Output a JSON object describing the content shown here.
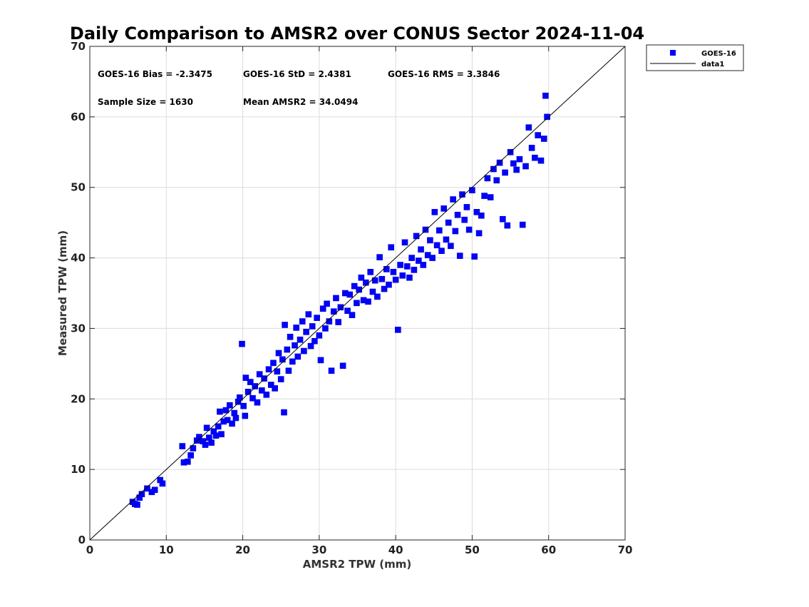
{
  "chart_data": {
    "type": "scatter",
    "title": "Daily Comparison to AMSR2 over CONUS Sector 2024-11-04",
    "xlabel": "AMSR2 TPW (mm)",
    "ylabel": "Measured TPW (mm)",
    "xlim": [
      0,
      70
    ],
    "ylim": [
      0,
      70
    ],
    "xticks": [
      "0",
      "10",
      "20",
      "30",
      "40",
      "50",
      "60",
      "70"
    ],
    "yticks": [
      "0",
      "10",
      "20",
      "30",
      "40",
      "50",
      "60",
      "70"
    ],
    "grid": true,
    "legend_position": "outside-top-right",
    "colors": {
      "marker": "#0000ff",
      "line": "#000000",
      "grid": "#dcdcdc"
    },
    "stats": {
      "bias": "GOES-16 Bias = -2.3475",
      "std": "GOES-16 StD = 2.4381",
      "rms": "GOES-16 RMS = 3.3846",
      "sample_size": "Sample Size = 1630",
      "mean": "Mean AMSR2 = 34.0494"
    },
    "series": [
      {
        "name": "GOES-16",
        "marker": "square",
        "points": [
          [
            5.6,
            5.4
          ],
          [
            5.9,
            5.1
          ],
          [
            6.2,
            5.0
          ],
          [
            6.5,
            6.0
          ],
          [
            6.8,
            6.5
          ],
          [
            7.5,
            7.3
          ],
          [
            8.1,
            6.8
          ],
          [
            8.5,
            7.1
          ],
          [
            9.2,
            8.5
          ],
          [
            9.5,
            8.0
          ],
          [
            12.1,
            13.3
          ],
          [
            12.3,
            11.0
          ],
          [
            12.8,
            11.1
          ],
          [
            13.2,
            12.0
          ],
          [
            13.5,
            13.0
          ],
          [
            14.0,
            14.1
          ],
          [
            14.3,
            14.6
          ],
          [
            14.8,
            14.0
          ],
          [
            15.1,
            13.5
          ],
          [
            15.3,
            15.9
          ],
          [
            15.6,
            14.5
          ],
          [
            15.9,
            13.8
          ],
          [
            16.2,
            15.4
          ],
          [
            16.5,
            14.8
          ],
          [
            16.8,
            16.1
          ],
          [
            17.0,
            18.2
          ],
          [
            17.2,
            15.0
          ],
          [
            17.5,
            16.8
          ],
          [
            17.8,
            18.4
          ],
          [
            18.0,
            17.0
          ],
          [
            18.3,
            19.1
          ],
          [
            18.6,
            16.5
          ],
          [
            18.9,
            18.0
          ],
          [
            19.1,
            17.3
          ],
          [
            19.4,
            19.6
          ],
          [
            19.6,
            20.2
          ],
          [
            19.9,
            27.8
          ],
          [
            20.1,
            19.0
          ],
          [
            20.3,
            17.6
          ],
          [
            20.4,
            23.0
          ],
          [
            20.7,
            21.0
          ],
          [
            21.0,
            22.4
          ],
          [
            21.3,
            20.1
          ],
          [
            21.6,
            21.8
          ],
          [
            21.9,
            19.5
          ],
          [
            22.2,
            23.5
          ],
          [
            22.5,
            21.2
          ],
          [
            22.8,
            22.9
          ],
          [
            23.1,
            20.6
          ],
          [
            23.4,
            24.2
          ],
          [
            23.7,
            22.0
          ],
          [
            24.0,
            25.1
          ],
          [
            24.2,
            21.5
          ],
          [
            24.5,
            23.9
          ],
          [
            24.7,
            26.5
          ],
          [
            25.0,
            22.8
          ],
          [
            25.2,
            25.6
          ],
          [
            25.4,
            18.1
          ],
          [
            25.5,
            30.5
          ],
          [
            25.8,
            27.0
          ],
          [
            26.0,
            24.0
          ],
          [
            26.2,
            28.8
          ],
          [
            26.5,
            25.3
          ],
          [
            26.8,
            27.6
          ],
          [
            27.0,
            30.1
          ],
          [
            27.2,
            26.0
          ],
          [
            27.5,
            28.4
          ],
          [
            27.8,
            31.0
          ],
          [
            28.0,
            26.8
          ],
          [
            28.3,
            29.5
          ],
          [
            28.6,
            32.0
          ],
          [
            28.9,
            27.5
          ],
          [
            29.1,
            30.3
          ],
          [
            29.4,
            28.2
          ],
          [
            29.7,
            31.5
          ],
          [
            30.0,
            29.0
          ],
          [
            30.2,
            25.5
          ],
          [
            30.5,
            32.8
          ],
          [
            30.8,
            30.0
          ],
          [
            31.0,
            33.5
          ],
          [
            31.3,
            31.0
          ],
          [
            31.6,
            24.0
          ],
          [
            31.9,
            32.4
          ],
          [
            32.2,
            34.3
          ],
          [
            32.5,
            30.9
          ],
          [
            32.8,
            33.0
          ],
          [
            33.1,
            24.7
          ],
          [
            33.4,
            35.0
          ],
          [
            33.7,
            32.5
          ],
          [
            34.0,
            34.8
          ],
          [
            34.3,
            31.9
          ],
          [
            34.6,
            36.0
          ],
          [
            34.9,
            33.6
          ],
          [
            35.2,
            35.5
          ],
          [
            35.5,
            37.2
          ],
          [
            35.8,
            34.0
          ],
          [
            36.1,
            36.5
          ],
          [
            36.4,
            33.8
          ],
          [
            36.7,
            38.0
          ],
          [
            37.0,
            35.2
          ],
          [
            37.3,
            36.8
          ],
          [
            37.6,
            34.5
          ],
          [
            37.9,
            40.1
          ],
          [
            38.2,
            37.0
          ],
          [
            38.5,
            35.6
          ],
          [
            38.8,
            38.4
          ],
          [
            39.1,
            36.2
          ],
          [
            39.4,
            41.5
          ],
          [
            39.7,
            38.0
          ],
          [
            40.0,
            36.9
          ],
          [
            40.3,
            29.8
          ],
          [
            40.6,
            39.0
          ],
          [
            40.9,
            37.5
          ],
          [
            41.2,
            42.2
          ],
          [
            41.5,
            38.8
          ],
          [
            41.8,
            37.2
          ],
          [
            42.1,
            40.0
          ],
          [
            42.4,
            38.3
          ],
          [
            42.7,
            43.1
          ],
          [
            43.0,
            39.6
          ],
          [
            43.3,
            41.2
          ],
          [
            43.6,
            39.0
          ],
          [
            43.9,
            44.0
          ],
          [
            44.2,
            40.4
          ],
          [
            44.5,
            42.5
          ],
          [
            44.8,
            40.0
          ],
          [
            45.1,
            46.5
          ],
          [
            45.4,
            41.8
          ],
          [
            45.7,
            43.9
          ],
          [
            46.0,
            41.0
          ],
          [
            46.3,
            47.0
          ],
          [
            46.6,
            42.6
          ],
          [
            46.9,
            45.0
          ],
          [
            47.2,
            41.7
          ],
          [
            47.5,
            48.3
          ],
          [
            47.8,
            43.8
          ],
          [
            48.1,
            46.1
          ],
          [
            48.4,
            40.3
          ],
          [
            48.7,
            49.0
          ],
          [
            49.0,
            45.4
          ],
          [
            49.3,
            47.2
          ],
          [
            49.6,
            44.0
          ],
          [
            50.0,
            49.6
          ],
          [
            50.3,
            40.2
          ],
          [
            50.6,
            46.5
          ],
          [
            50.9,
            43.5
          ],
          [
            51.2,
            46.0
          ],
          [
            51.6,
            48.8
          ],
          [
            52.0,
            51.3
          ],
          [
            52.4,
            48.6
          ],
          [
            52.8,
            52.6
          ],
          [
            53.2,
            51.0
          ],
          [
            53.6,
            53.5
          ],
          [
            54.0,
            45.5
          ],
          [
            54.3,
            52.1
          ],
          [
            54.6,
            44.6
          ],
          [
            55.0,
            55.0
          ],
          [
            55.4,
            53.4
          ],
          [
            55.8,
            52.5
          ],
          [
            56.2,
            54.0
          ],
          [
            56.6,
            44.7
          ],
          [
            57.0,
            53.0
          ],
          [
            57.4,
            58.5
          ],
          [
            57.8,
            55.6
          ],
          [
            58.2,
            54.2
          ],
          [
            58.6,
            57.4
          ],
          [
            59.0,
            53.8
          ],
          [
            59.4,
            56.9
          ],
          [
            59.6,
            63.0
          ],
          [
            59.8,
            60.0
          ]
        ]
      },
      {
        "name": "data1",
        "marker": "line",
        "points": [
          [
            0,
            0
          ],
          [
            70,
            70
          ]
        ]
      }
    ]
  }
}
